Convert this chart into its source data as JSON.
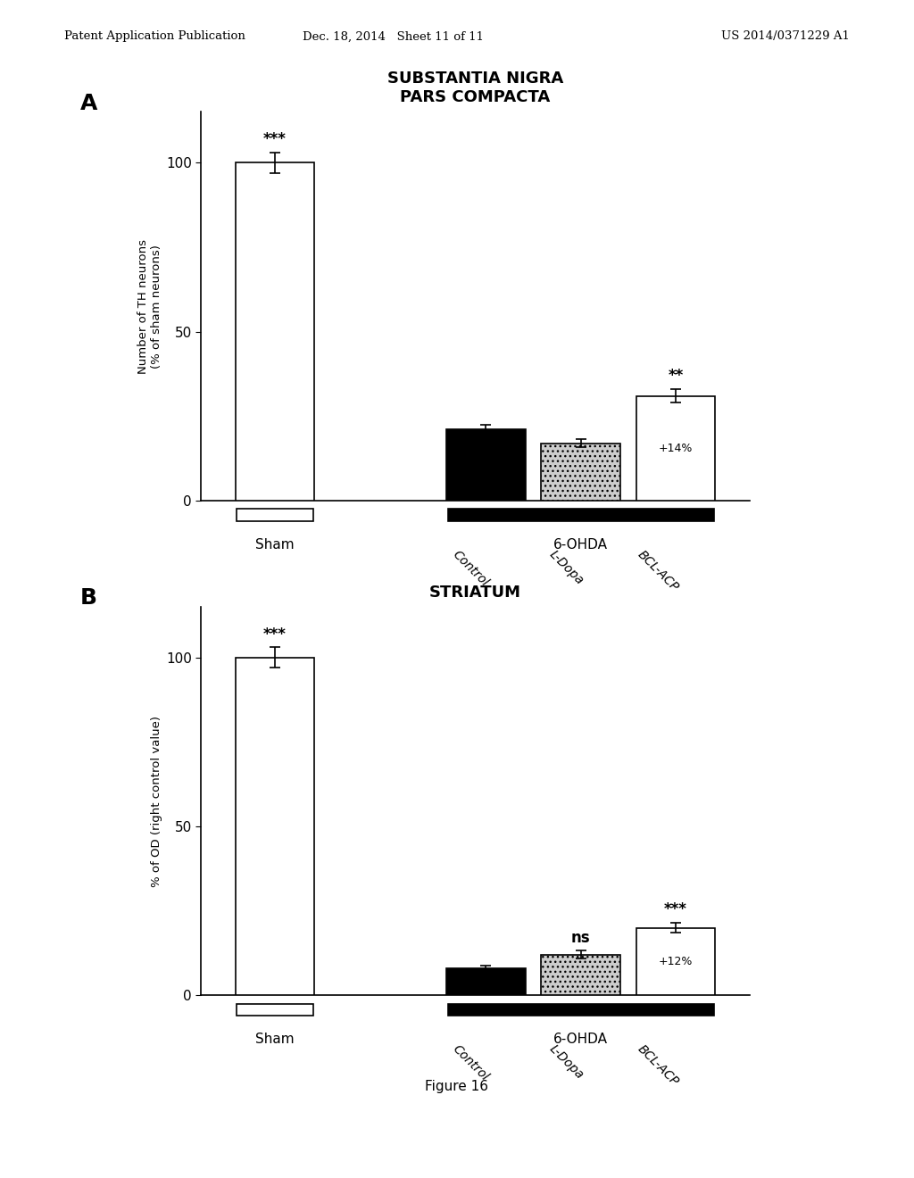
{
  "header_left": "Patent Application Publication",
  "header_center": "Dec. 18, 2014   Sheet 11 of 11",
  "header_right": "US 2014/0371229 A1",
  "figure_label": "Figure 16",
  "panel_A": {
    "label": "A",
    "title": "SUBSTANTIA NIGRA\nPARS COMPACTA",
    "ylabel": "Number of TH neurons\n(% of sham neurons)",
    "bars": [
      {
        "x": 0,
        "height": 100,
        "color": "white",
        "edgecolor": "black",
        "error": 3,
        "sig": "***",
        "group_label": "Sham"
      },
      {
        "x": 2.0,
        "height": 21,
        "color": "black",
        "edgecolor": "black",
        "error": 1.5,
        "sig": "",
        "group_label": "Control"
      },
      {
        "x": 2.9,
        "height": 17,
        "color": "#cccccc",
        "edgecolor": "black",
        "error": 1.2,
        "sig": "",
        "group_label": "L-Dopa"
      },
      {
        "x": 3.8,
        "height": 31,
        "color": "white",
        "edgecolor": "black",
        "error": 2.0,
        "sig": "**",
        "annotation": "+14%",
        "group_label": "BCL-ACP"
      }
    ],
    "ylim": [
      0,
      115
    ],
    "yticks": [
      0,
      50,
      100
    ],
    "bar_width": 0.75,
    "xlim": [
      -0.7,
      4.5
    ]
  },
  "panel_B": {
    "label": "B",
    "title": "STRIATUM",
    "ylabel": "% of OD (right control value)",
    "bars": [
      {
        "x": 0,
        "height": 100,
        "color": "white",
        "edgecolor": "black",
        "error": 3,
        "sig": "***",
        "group_label": "Sham"
      },
      {
        "x": 2.0,
        "height": 8,
        "color": "black",
        "edgecolor": "black",
        "error": 0.8,
        "sig": "",
        "group_label": "Control"
      },
      {
        "x": 2.9,
        "height": 12,
        "color": "#cccccc",
        "edgecolor": "black",
        "error": 1.2,
        "sig": "ns",
        "group_label": "L-Dopa"
      },
      {
        "x": 3.8,
        "height": 20,
        "color": "white",
        "edgecolor": "black",
        "error": 1.5,
        "sig": "***",
        "annotation": "+12%",
        "group_label": "BCL-ACP"
      }
    ],
    "ylim": [
      0,
      115
    ],
    "yticks": [
      0,
      50,
      100
    ],
    "bar_width": 0.75,
    "xlim": [
      -0.7,
      4.5
    ]
  },
  "background_color": "white"
}
